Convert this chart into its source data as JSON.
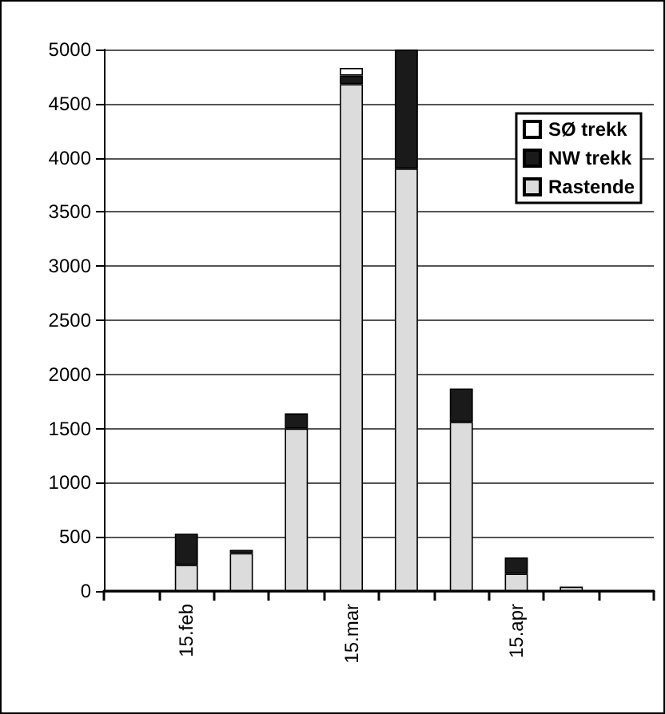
{
  "chart_data": {
    "type": "bar",
    "stacked": true,
    "categories": [
      null,
      "15.feb",
      null,
      null,
      "15.mar",
      null,
      null,
      "15.apr",
      null,
      null
    ],
    "series": [
      {
        "name": "Rastende",
        "color": "#dcdcdc",
        "values": [
          null,
          240,
          350,
          1500,
          4680,
          3900,
          1560,
          160,
          40,
          null
        ]
      },
      {
        "name": "NW trekk",
        "color": "#1a1a1a",
        "values": [
          null,
          290,
          30,
          140,
          80,
          1100,
          310,
          150,
          null,
          null
        ]
      },
      {
        "name": "SØ trekk",
        "color": "#ffffff",
        "values": [
          null,
          null,
          null,
          null,
          70,
          null,
          null,
          null,
          null,
          null
        ]
      }
    ],
    "ylim": [
      0,
      5000
    ],
    "yticks": [
      0,
      500,
      1000,
      1500,
      2000,
      2500,
      3000,
      3500,
      4000,
      4500,
      5000
    ],
    "grid": "y",
    "legend": "top right"
  }
}
